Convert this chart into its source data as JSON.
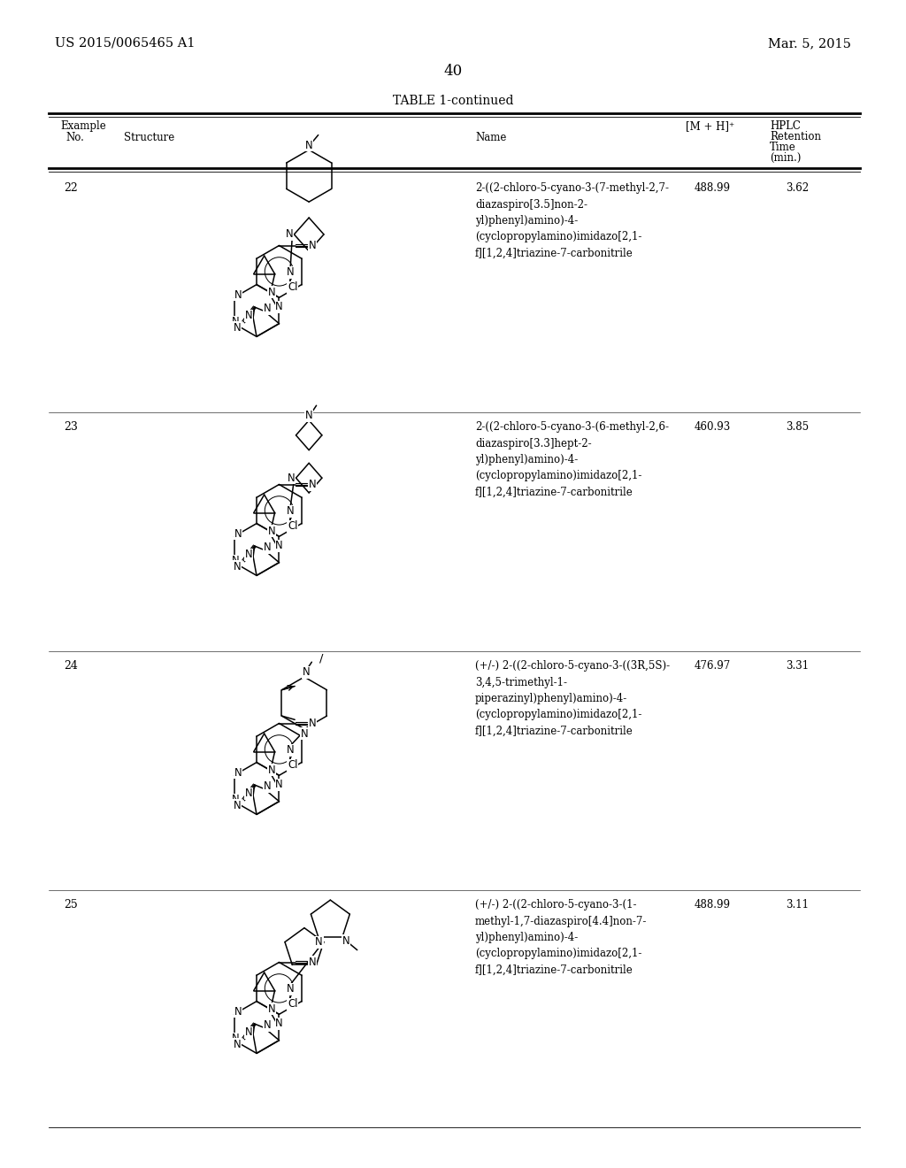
{
  "background_color": "#ffffff",
  "page_number": "40",
  "patent_left": "US 2015/0065465 A1",
  "patent_right": "Mar. 5, 2015",
  "table_title": "TABLE 1-continued",
  "rows": [
    {
      "example_no": "22",
      "name": "2-((2-chloro-5-cyano-3-(7-methyl-2,7-\ndiazaspiro[3.5]non-2-\nyl)phenyl)amino)-4-\n(cyclopropylamino)imidazo[2,1-\nf][1,2,4]triazine-7-carbonitrile",
      "mh": "488.99",
      "hplc": "3.62"
    },
    {
      "example_no": "23",
      "name": "2-((2-chloro-5-cyano-3-(6-methyl-2,6-\ndiazaspiro[3.3]hept-2-\nyl)phenyl)amino)-4-\n(cyclopropylamino)imidazo[2,1-\nf][1,2,4]triazine-7-carbonitrile",
      "mh": "460.93",
      "hplc": "3.85"
    },
    {
      "example_no": "24",
      "name": "(+/-) 2-((2-chloro-5-cyano-3-((3R,5S)-\n3,4,5-trimethyl-1-\npiperazinyl)phenyl)amino)-4-\n(cyclopropylamino)imidazo[2,1-\nf][1,2,4]triazine-7-carbonitrile",
      "mh": "476.97",
      "hplc": "3.31"
    },
    {
      "example_no": "25",
      "name": "(+/-) 2-((2-chloro-5-cyano-3-(1-\nmethyl-1,7-diazaspiro[4.4]non-7-\nyl)phenyl)amino)-4-\n(cyclopropylamino)imidazo[2,1-\nf][1,2,4]triazine-7-carbonitrile",
      "mh": "488.99",
      "hplc": "3.11"
    }
  ]
}
